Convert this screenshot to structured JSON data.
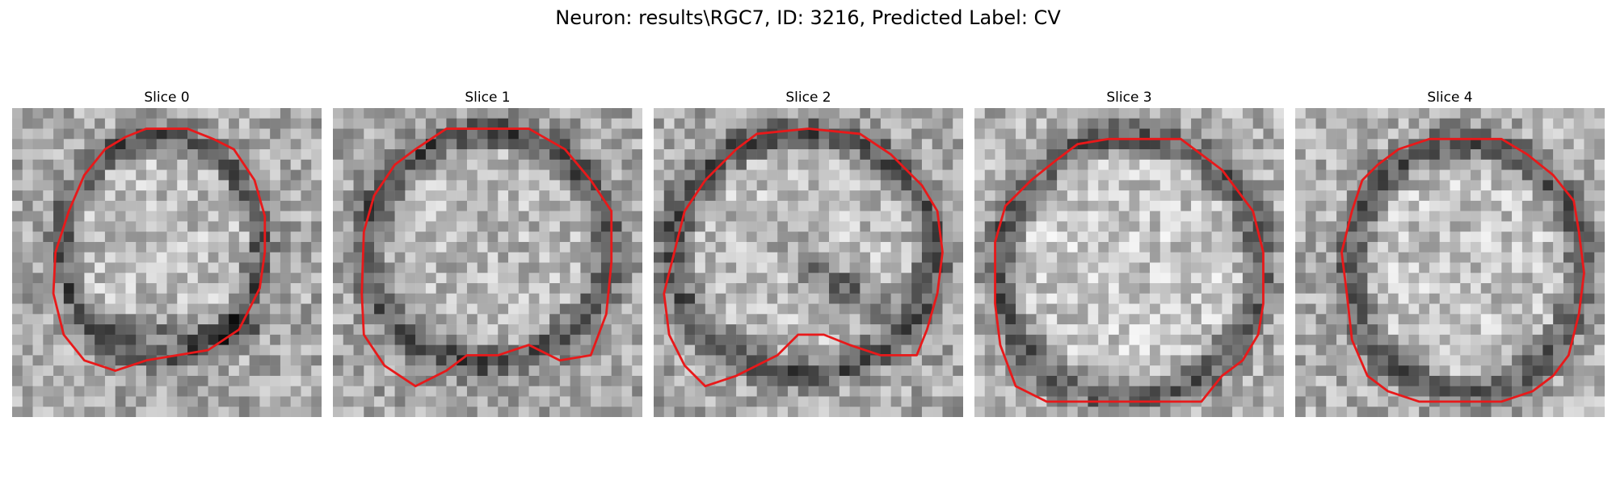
{
  "figure": {
    "title": "Neuron: results\\RGC7, ID: 3216, Predicted Label: CV"
  },
  "colors": {
    "background": "#ffffff",
    "contour": "#e8191a",
    "colormap": "grayscale"
  },
  "panels": [
    {
      "title": "Slice 0",
      "image": "grayscale microscopy slice with red neuron contour"
    },
    {
      "title": "Slice 1",
      "image": "grayscale microscopy slice with red neuron contour"
    },
    {
      "title": "Slice 2",
      "image": "grayscale microscopy slice with red neuron contour"
    },
    {
      "title": "Slice 3",
      "image": "grayscale microscopy slice with red neuron contour"
    },
    {
      "title": "Slice 4",
      "image": "grayscale microscopy slice with red neuron contour"
    }
  ]
}
